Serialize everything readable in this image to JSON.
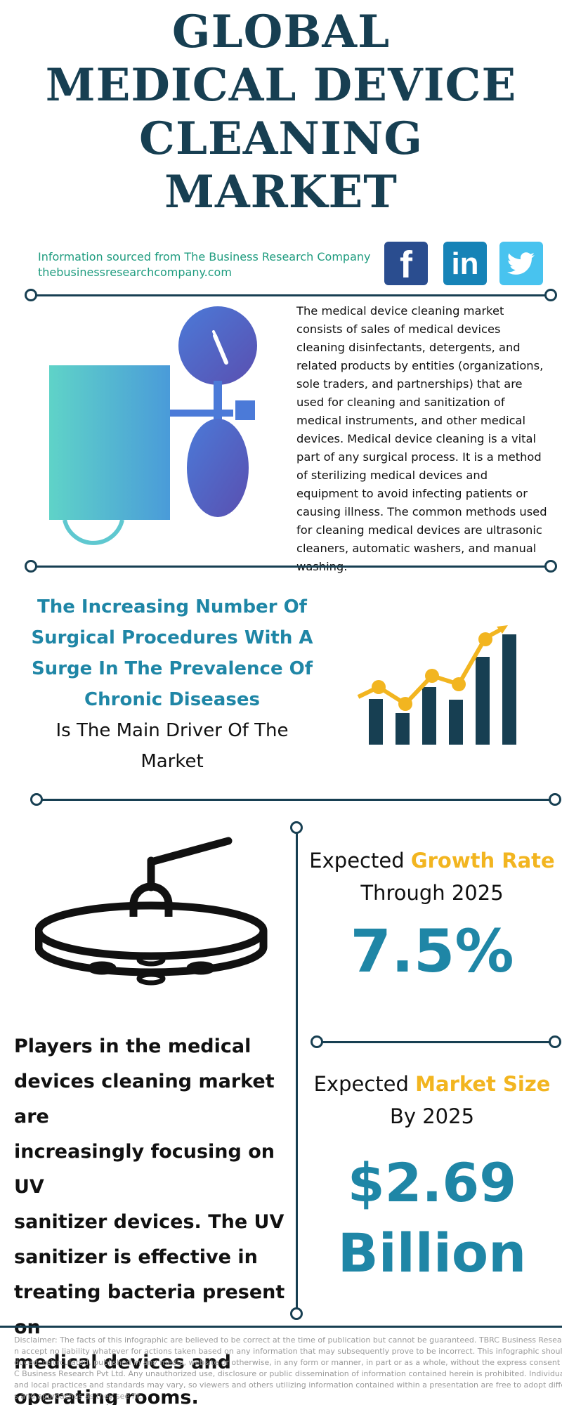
{
  "title": {
    "lines": [
      "GLOBAL",
      "MEDICAL DEVICE",
      "CLEANING",
      "MARKET"
    ]
  },
  "source": {
    "line1": "Information sourced from The Business Research Company",
    "line2": "thebusinessresearchcompany.com"
  },
  "social": [
    {
      "name": "facebook",
      "glyph": "f"
    },
    {
      "name": "linkedin",
      "glyph": "in"
    },
    {
      "name": "twitter",
      "glyph": ""
    }
  ],
  "description": "The medical device cleaning market consists of sales of medical devices cleaning disinfectants, detergents, and related products by entities (organizations, sole traders, and partnerships) that are used for cleaning and sanitization of medical instruments, and other medical devices. Medical device cleaning is a vital part of any surgical process. It is a method of sterilizing medical devices and equipment to avoid infecting patients or causing illness. The common methods used for cleaning medical devices are ultrasonic cleaners, automatic washers, and manual washing.",
  "driver": {
    "highlight_lines": [
      "The Increasing Number Of",
      "Surgical Procedures With A",
      "Surge In The Prevalence Of",
      "Chronic Diseases"
    ],
    "normal_lines": [
      "Is The Main Driver Of The",
      "Market"
    ]
  },
  "growth": {
    "prefix": "Expected ",
    "highlight": "Growth Rate",
    "line2": "Through 2025",
    "value": "7.5%"
  },
  "size": {
    "prefix": "Expected ",
    "highlight": "Market Size",
    "line2": "By 2025",
    "value_line1": "$2.69",
    "value_line2": "Billion"
  },
  "players": {
    "lines": [
      "Players in the medical",
      "devices cleaning market are",
      "increasingly focusing on UV",
      "sanitizer devices. The UV",
      "sanitizer is effective in",
      "treating bacteria present on",
      "medical devices and",
      "operating rooms."
    ]
  },
  "disclaimer": {
    "lines": [
      "Disclaimer: The facts of this infographic are believed to be correct at the time of publication but cannot be guaranteed. TBRC Business Research Pvt Ltd c",
      "n accept no liability whatever for actions taken based on any information that may subsequently prove to be incorrect. This infographic should not be repr",
      "duced, reicrculated, published in any media, website or otherwise, in any form or manner, in part or as a whole, without the express consent in writing of TB",
      "C Business Research Pvt Ltd. Any unauthorized use, disclosure or public dissemination of information contained herein is prohibited. Individual situations",
      "and local practices and standards may vary, so viewers and others utilizing information contained within a presentation are free to adopt differing standar",
      "s and approaches as they see fit."
    ]
  },
  "colors": {
    "navy": "#173f52",
    "teal_text": "#1f9c7f",
    "blue_accent": "#1f86a6",
    "gold": "#f2b520",
    "facebook": "#2a4d8f",
    "linkedin": "#1683b7",
    "twitter": "#48c3ef"
  }
}
